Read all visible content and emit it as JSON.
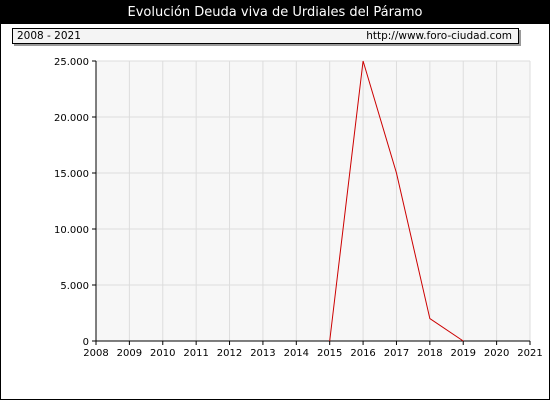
{
  "header": {
    "title": "Evolución Deuda viva de Urdiales del Páramo"
  },
  "info_bar": {
    "period": "2008 - 2021",
    "url": "http://www.foro-ciudad.com"
  },
  "colors": {
    "line": "#cc0000",
    "plot_background": "#f7f7f7",
    "grid": "#dddddd"
  },
  "chart_data": {
    "type": "line",
    "title": "Evolución Deuda viva de Urdiales del Páramo",
    "xlabel": "",
    "ylabel": "",
    "x_ticks": [
      "2008",
      "2009",
      "2010",
      "2011",
      "2012",
      "2013",
      "2014",
      "2015",
      "2016",
      "2017",
      "2018",
      "2019",
      "2020",
      "2021"
    ],
    "y_ticks": [
      "0",
      "5.000",
      "10.000",
      "15.000",
      "20.000",
      "25.000"
    ],
    "xlim": [
      2008,
      2021
    ],
    "ylim": [
      0,
      25000
    ],
    "grid": true,
    "series": [
      {
        "x": [
          2015,
          2016,
          2017,
          2018,
          2019
        ],
        "y": [
          0,
          25000,
          15000,
          2000,
          0
        ]
      }
    ]
  }
}
